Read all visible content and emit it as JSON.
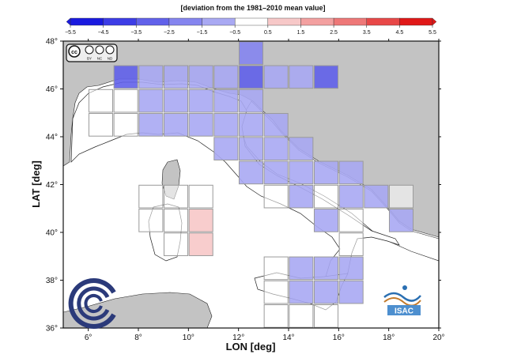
{
  "colorbar": {
    "title": "[deviation from the 1981–2010 mean value]",
    "ticks": [
      "−5.5",
      "−4.5",
      "−3.5",
      "−2.5",
      "−1.5",
      "−0.5",
      "0.5",
      "1.5",
      "2.5",
      "3.5",
      "4.5",
      "5.5"
    ],
    "colors": [
      "#1a1adf",
      "#3d3de6",
      "#6161ea",
      "#8585ef",
      "#a9a9f3",
      "#cdcdf8",
      "#ffffff",
      "#f7c8c8",
      "#f3a0a0",
      "#ee7878",
      "#e84848",
      "#e01818"
    ]
  },
  "map": {
    "xlabel": "LON [deg]",
    "ylabel": "LAT [deg]",
    "x_ticks": [
      6,
      8,
      10,
      12,
      14,
      16,
      18,
      20
    ],
    "y_ticks": [
      36,
      38,
      40,
      42,
      44,
      46,
      48
    ],
    "x_tick_labels": [
      "6°",
      "8°",
      "10°",
      "12°",
      "14°",
      "16°",
      "18°",
      "20°"
    ],
    "y_tick_labels": [
      "36°",
      "38°",
      "40°",
      "42°",
      "44°",
      "46°",
      "48°"
    ],
    "lon_range": [
      5,
      20
    ],
    "lat_range": [
      36,
      48
    ],
    "colors": {
      "sea": "#ffffff",
      "land": "#c3c3c3",
      "italy": "#ffffff",
      "grid_border": "#9a9a9a"
    }
  },
  "chart_data": {
    "type": "heatmap",
    "title": "",
    "xlabel": "LON [deg]",
    "ylabel": "LAT [deg]",
    "xlim": [
      5,
      20
    ],
    "ylim": [
      36,
      48
    ],
    "cell_size_deg": 1,
    "value_unit": "deviation from the 1981-2010 mean value",
    "cells": [
      {
        "lon": 12,
        "lat": 47,
        "value": -1.6
      },
      {
        "lon": 7,
        "lat": 46,
        "value": -2.6
      },
      {
        "lon": 12,
        "lat": 46,
        "value": -2.6
      },
      {
        "lon": 15,
        "lat": 46,
        "value": -2.6
      },
      {
        "lon": 8,
        "lat": 46,
        "value": -0.8
      },
      {
        "lon": 9,
        "lat": 46,
        "value": -0.9
      },
      {
        "lon": 10,
        "lat": 46,
        "value": -0.9
      },
      {
        "lon": 11,
        "lat": 46,
        "value": -1.0
      },
      {
        "lon": 13,
        "lat": 46,
        "value": -1.1
      },
      {
        "lon": 14,
        "lat": 46,
        "value": -0.8
      },
      {
        "lon": 6,
        "lat": 45,
        "value": 0.0
      },
      {
        "lon": 7,
        "lat": 45,
        "value": 0.0
      },
      {
        "lon": 8,
        "lat": 45,
        "value": -1.0
      },
      {
        "lon": 9,
        "lat": 45,
        "value": -1.0
      },
      {
        "lon": 10,
        "lat": 45,
        "value": -0.9
      },
      {
        "lon": 11,
        "lat": 45,
        "value": -1.0
      },
      {
        "lon": 12,
        "lat": 45,
        "value": -1.0
      },
      {
        "lon": 6,
        "lat": 44,
        "value": 0.0
      },
      {
        "lon": 7,
        "lat": 44,
        "value": 0.0
      },
      {
        "lon": 8,
        "lat": 44,
        "value": -1.0
      },
      {
        "lon": 9,
        "lat": 44,
        "value": -1.0
      },
      {
        "lon": 10,
        "lat": 44,
        "value": -1.0
      },
      {
        "lon": 11,
        "lat": 44,
        "value": -1.1
      },
      {
        "lon": 12,
        "lat": 44,
        "value": -1.1
      },
      {
        "lon": 13,
        "lat": 44,
        "value": -0.8
      },
      {
        "lon": 11,
        "lat": 43,
        "value": -1.0
      },
      {
        "lon": 12,
        "lat": 43,
        "value": -1.1
      },
      {
        "lon": 13,
        "lat": 43,
        "value": -1.0
      },
      {
        "lon": 14,
        "lat": 43,
        "value": -0.8
      },
      {
        "lon": 12,
        "lat": 42,
        "value": -0.6
      },
      {
        "lon": 13,
        "lat": 42,
        "value": -1.0
      },
      {
        "lon": 14,
        "lat": 42,
        "value": -1.0
      },
      {
        "lon": 15,
        "lat": 42,
        "value": -0.9
      },
      {
        "lon": 16,
        "lat": 42,
        "value": -0.9
      },
      {
        "lon": 13,
        "lat": 41,
        "value": 0.0
      },
      {
        "lon": 14,
        "lat": 41,
        "value": -0.9
      },
      {
        "lon": 15,
        "lat": 41,
        "value": 0.0
      },
      {
        "lon": 16,
        "lat": 41,
        "value": -0.9
      },
      {
        "lon": 17,
        "lat": 41,
        "value": -1.0
      },
      {
        "lon": 18,
        "lat": 41,
        "value": 0.0
      },
      {
        "lon": 15,
        "lat": 40,
        "value": -0.9
      },
      {
        "lon": 16,
        "lat": 40,
        "value": 0.0
      },
      {
        "lon": 18,
        "lat": 40,
        "value": -1.0
      },
      {
        "lon": 16,
        "lat": 39,
        "value": 0.0
      },
      {
        "lon": 8,
        "lat": 41,
        "value": 0.0
      },
      {
        "lon": 9,
        "lat": 41,
        "value": 0.0
      },
      {
        "lon": 10,
        "lat": 41,
        "value": 0.0
      },
      {
        "lon": 8,
        "lat": 40,
        "value": 0.0
      },
      {
        "lon": 9,
        "lat": 40,
        "value": 0.0
      },
      {
        "lon": 10,
        "lat": 40,
        "value": 0.6
      },
      {
        "lon": 9,
        "lat": 39,
        "value": 0.0
      },
      {
        "lon": 10,
        "lat": 39,
        "value": 0.6
      },
      {
        "lon": 13,
        "lat": 38,
        "value": 0.0
      },
      {
        "lon": 14,
        "lat": 38,
        "value": -0.9
      },
      {
        "lon": 15,
        "lat": 38,
        "value": -1.0
      },
      {
        "lon": 16,
        "lat": 38,
        "value": -0.9
      },
      {
        "lon": 13,
        "lat": 37,
        "value": 0.0
      },
      {
        "lon": 14,
        "lat": 37,
        "value": -0.8
      },
      {
        "lon": 15,
        "lat": 37,
        "value": -0.8
      },
      {
        "lon": 16,
        "lat": 37,
        "value": -0.6
      },
      {
        "lon": 13,
        "lat": 36,
        "value": 0.0
      },
      {
        "lon": 14,
        "lat": 36,
        "value": 0.0
      },
      {
        "lon": 15,
        "lat": 36,
        "value": 0.0
      }
    ]
  },
  "license_badge": {
    "cc": "cc",
    "by": "BY",
    "nc": "NC",
    "nd": "ND"
  },
  "isac_logo": {
    "text": "ISAC"
  }
}
